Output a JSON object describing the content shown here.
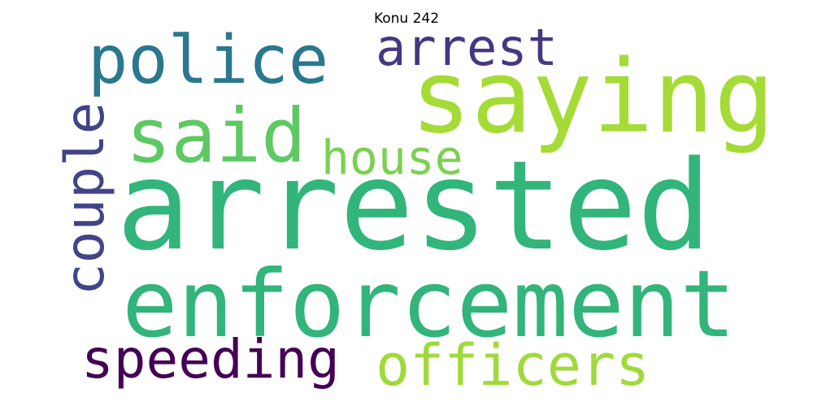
{
  "title": "Konu 242",
  "words": {
    "arrested": {
      "text": "arrested",
      "color": "#31b57b"
    },
    "enforcement": {
      "text": "enforcement",
      "color": "#32b47b"
    },
    "saying": {
      "text": "saying",
      "color": "#a5db36"
    },
    "police": {
      "text": "police",
      "color": "#2a788e"
    },
    "said": {
      "text": "said",
      "color": "#5ec962"
    },
    "house": {
      "text": "house",
      "color": "#7ad151"
    },
    "arrest": {
      "text": "arrest",
      "color": "#453781"
    },
    "officers": {
      "text": "officers",
      "color": "#9fda3a"
    },
    "speeding": {
      "text": "speeding",
      "color": "#440154"
    },
    "couple": {
      "text": "couple",
      "color": "#414487"
    }
  }
}
